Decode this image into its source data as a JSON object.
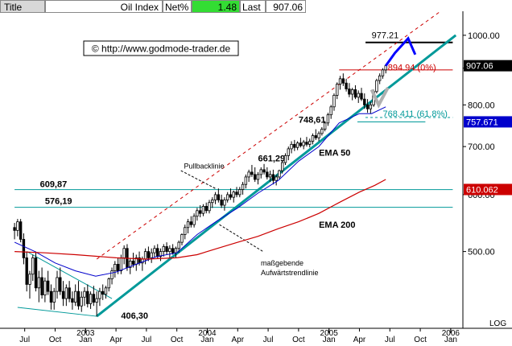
{
  "header": {
    "title_label": "Title",
    "index_name": "Oil Index",
    "netpct_label": "Net%",
    "netpct_value": "1.48",
    "last_label": "Last",
    "last_value": "907.06"
  },
  "watermark": "© http://www.godmode-trader.de",
  "colors": {
    "candle_fill": "#ffffff",
    "candle_stroke": "#000000",
    "ema50": "#0000cc",
    "ema200": "#cc0000",
    "trendline": "#009999",
    "channel": "#cc0000",
    "forecast": "#0000ff",
    "netpct_bg": "#33dd33",
    "last_bg": "#000000",
    "tag_blue": "#0000cc",
    "tag_red": "#cc0000"
  },
  "chart_data": {
    "type": "candlestick",
    "scale": "log",
    "ylim": [
      395,
      1080
    ],
    "xlim": [
      "2002-06",
      "2006-01"
    ],
    "x_ticks": [
      {
        "label": "Jul",
        "t": 1.0
      },
      {
        "label": "Oct",
        "t": 4.0
      },
      {
        "label": "Jan",
        "t": 7.0,
        "year": "2003"
      },
      {
        "label": "Apr",
        "t": 10.0
      },
      {
        "label": "Jul",
        "t": 13.0
      },
      {
        "label": "Oct",
        "t": 16.0
      },
      {
        "label": "Jan",
        "t": 19.0,
        "year": "2004"
      },
      {
        "label": "Apr",
        "t": 22.0
      },
      {
        "label": "Jul",
        "t": 25.0
      },
      {
        "label": "Oct",
        "t": 28.0
      },
      {
        "label": "Jan",
        "t": 31.0,
        "year": "2005"
      },
      {
        "label": "Apr",
        "t": 34.0
      },
      {
        "label": "Jul",
        "t": 37.0
      },
      {
        "label": "Oct",
        "t": 40.0
      },
      {
        "label": "Jan",
        "t": 43.0,
        "year": "2006"
      }
    ],
    "y_ticks": [
      500,
      600,
      700,
      800,
      900,
      1000
    ],
    "y_tick_labels": [
      "500.00",
      "600.00",
      "700.00",
      "800.00",
      "900.00",
      "1000.00"
    ],
    "scale_label": "LOG",
    "price_tags": [
      {
        "value": 907.06,
        "label": "907.06",
        "style": "black"
      },
      {
        "value": 757.671,
        "label": "757.671",
        "style": "blue"
      },
      {
        "value": 610.062,
        "label": "610.062",
        "style": "red"
      }
    ],
    "candles": [
      [
        0.0,
        540,
        548,
        520,
        535
      ],
      [
        0.3,
        535,
        555,
        525,
        550
      ],
      [
        0.6,
        550,
        555,
        515,
        520
      ],
      [
        0.9,
        520,
        530,
        480,
        490
      ],
      [
        1.2,
        490,
        500,
        440,
        450
      ],
      [
        1.5,
        450,
        470,
        430,
        465
      ],
      [
        1.8,
        465,
        495,
        455,
        490
      ],
      [
        2.1,
        490,
        500,
        440,
        445
      ],
      [
        2.4,
        445,
        470,
        425,
        460
      ],
      [
        2.7,
        460,
        475,
        430,
        435
      ],
      [
        3.0,
        435,
        460,
        425,
        455
      ],
      [
        3.3,
        455,
        470,
        435,
        440
      ],
      [
        3.6,
        440,
        450,
        415,
        425
      ],
      [
        3.9,
        425,
        445,
        415,
        440
      ],
      [
        4.2,
        440,
        470,
        430,
        460
      ],
      [
        4.5,
        460,
        475,
        435,
        440
      ],
      [
        4.8,
        440,
        455,
        420,
        430
      ],
      [
        5.1,
        430,
        450,
        420,
        445
      ],
      [
        5.4,
        445,
        455,
        425,
        430
      ],
      [
        5.7,
        430,
        440,
        415,
        425
      ],
      [
        6.0,
        425,
        450,
        420,
        440
      ],
      [
        6.3,
        440,
        455,
        415,
        420
      ],
      [
        6.6,
        420,
        440,
        412,
        432
      ],
      [
        6.9,
        432,
        446,
        420,
        440
      ],
      [
        7.2,
        440,
        450,
        418,
        423
      ],
      [
        7.5,
        423,
        440,
        416,
        436
      ],
      [
        7.8,
        436,
        448,
        420,
        425
      ],
      [
        8.1,
        425,
        440,
        406,
        430
      ],
      [
        8.4,
        430,
        445,
        420,
        440
      ],
      [
        8.7,
        440,
        450,
        428,
        436
      ],
      [
        9.0,
        436,
        448,
        430,
        445
      ],
      [
        9.3,
        445,
        460,
        440,
        458
      ],
      [
        9.6,
        458,
        475,
        450,
        470
      ],
      [
        9.9,
        470,
        485,
        460,
        480
      ],
      [
        10.2,
        480,
        490,
        465,
        470
      ],
      [
        10.5,
        470,
        495,
        465,
        490
      ],
      [
        10.8,
        490,
        510,
        480,
        505
      ],
      [
        11.1,
        505,
        512,
        470,
        475
      ],
      [
        11.4,
        475,
        490,
        465,
        485
      ],
      [
        11.7,
        485,
        498,
        475,
        480
      ],
      [
        12.0,
        480,
        495,
        470,
        490
      ],
      [
        12.3,
        490,
        500,
        478,
        482
      ],
      [
        12.6,
        482,
        492,
        470,
        488
      ],
      [
        12.9,
        488,
        505,
        480,
        500
      ],
      [
        13.2,
        500,
        508,
        485,
        490
      ],
      [
        13.5,
        490,
        505,
        482,
        498
      ],
      [
        13.8,
        498,
        510,
        490,
        505
      ],
      [
        14.1,
        505,
        512,
        488,
        492
      ],
      [
        14.4,
        492,
        505,
        485,
        500
      ],
      [
        14.7,
        500,
        512,
        492,
        508
      ],
      [
        15.0,
        508,
        515,
        495,
        500
      ],
      [
        15.3,
        500,
        510,
        490,
        505
      ],
      [
        15.6,
        505,
        512,
        495,
        498
      ],
      [
        15.9,
        498,
        508,
        490,
        505
      ],
      [
        16.2,
        505,
        518,
        498,
        515
      ],
      [
        16.5,
        515,
        530,
        510,
        528
      ],
      [
        16.8,
        528,
        545,
        520,
        540
      ],
      [
        17.1,
        540,
        555,
        530,
        550
      ],
      [
        17.4,
        550,
        560,
        540,
        545
      ],
      [
        17.7,
        545,
        565,
        540,
        560
      ],
      [
        18.0,
        560,
        575,
        552,
        570
      ],
      [
        18.3,
        570,
        580,
        558,
        565
      ],
      [
        18.6,
        565,
        582,
        560,
        578
      ],
      [
        18.9,
        578,
        585,
        565,
        570
      ],
      [
        19.2,
        570,
        590,
        565,
        585
      ],
      [
        19.5,
        585,
        595,
        575,
        590
      ],
      [
        19.8,
        590,
        605,
        582,
        600
      ],
      [
        20.1,
        600,
        612,
        585,
        590
      ],
      [
        20.4,
        590,
        600,
        575,
        580
      ],
      [
        20.7,
        580,
        595,
        570,
        590
      ],
      [
        21.0,
        590,
        605,
        585,
        600
      ],
      [
        21.3,
        600,
        612,
        590,
        595
      ],
      [
        21.6,
        595,
        608,
        585,
        605
      ],
      [
        21.9,
        605,
        615,
        595,
        600
      ],
      [
        22.2,
        600,
        615,
        595,
        610
      ],
      [
        22.5,
        610,
        625,
        600,
        620
      ],
      [
        22.8,
        620,
        640,
        612,
        635
      ],
      [
        23.1,
        635,
        650,
        625,
        645
      ],
      [
        23.4,
        645,
        660,
        635,
        640
      ],
      [
        23.7,
        640,
        655,
        625,
        630
      ],
      [
        24.0,
        630,
        645,
        620,
        640
      ],
      [
        24.3,
        640,
        655,
        632,
        650
      ],
      [
        24.6,
        650,
        662,
        640,
        645
      ],
      [
        24.9,
        645,
        655,
        630,
        635
      ],
      [
        25.2,
        635,
        648,
        625,
        640
      ],
      [
        25.5,
        640,
        650,
        620,
        628
      ],
      [
        25.8,
        628,
        640,
        618,
        635
      ],
      [
        26.1,
        635,
        650,
        630,
        648
      ],
      [
        26.4,
        648,
        670,
        642,
        665
      ],
      [
        26.7,
        665,
        685,
        660,
        680
      ],
      [
        27.0,
        680,
        700,
        670,
        695
      ],
      [
        27.3,
        695,
        712,
        685,
        705
      ],
      [
        27.6,
        705,
        715,
        690,
        698
      ],
      [
        27.9,
        698,
        712,
        692,
        708
      ],
      [
        28.2,
        708,
        720,
        698,
        702
      ],
      [
        28.5,
        702,
        715,
        694,
        710
      ],
      [
        28.8,
        710,
        722,
        700,
        705
      ],
      [
        29.1,
        705,
        718,
        698,
        712
      ],
      [
        29.4,
        712,
        730,
        705,
        725
      ],
      [
        29.7,
        725,
        740,
        715,
        720
      ],
      [
        30.0,
        720,
        735,
        712,
        730
      ],
      [
        30.3,
        730,
        745,
        725,
        740
      ],
      [
        30.6,
        740,
        760,
        735,
        755
      ],
      [
        30.9,
        755,
        780,
        748,
        775
      ],
      [
        31.2,
        775,
        800,
        765,
        795
      ],
      [
        31.5,
        795,
        830,
        785,
        825
      ],
      [
        31.8,
        825,
        860,
        815,
        855
      ],
      [
        32.1,
        855,
        878,
        840,
        870
      ],
      [
        32.4,
        870,
        885,
        850,
        858
      ],
      [
        32.7,
        858,
        870,
        835,
        842
      ],
      [
        33.0,
        842,
        858,
        820,
        828
      ],
      [
        33.3,
        828,
        845,
        812,
        840
      ],
      [
        33.6,
        840,
        852,
        815,
        820
      ],
      [
        33.9,
        820,
        838,
        805,
        830
      ],
      [
        34.2,
        830,
        845,
        810,
        815
      ],
      [
        34.5,
        815,
        830,
        790,
        800
      ],
      [
        34.8,
        800,
        815,
        780,
        790
      ],
      [
        35.1,
        790,
        808,
        778,
        800
      ],
      [
        35.4,
        800,
        840,
        795,
        835
      ],
      [
        35.7,
        835,
        870,
        830,
        865
      ],
      [
        36.0,
        865,
        885,
        855,
        878
      ],
      [
        36.3,
        878,
        900,
        870,
        895
      ],
      [
        36.6,
        895,
        912,
        885,
        907
      ]
    ],
    "ema50": [
      [
        0.0,
        515
      ],
      [
        2.0,
        500
      ],
      [
        4.0,
        482
      ],
      [
        6.0,
        470
      ],
      [
        8.0,
        462
      ],
      [
        10.0,
        468
      ],
      [
        12.0,
        480
      ],
      [
        14.0,
        492
      ],
      [
        16.0,
        498
      ],
      [
        18.0,
        528
      ],
      [
        20.0,
        552
      ],
      [
        22.0,
        575
      ],
      [
        24.0,
        603
      ],
      [
        26.0,
        628
      ],
      [
        28.0,
        668
      ],
      [
        30.0,
        700
      ],
      [
        32.0,
        755
      ],
      [
        34.0,
        778
      ],
      [
        35.2,
        778
      ],
      [
        36.6,
        795
      ]
    ],
    "ema200": [
      [
        0.0,
        500
      ],
      [
        3.0,
        498
      ],
      [
        6.0,
        495
      ],
      [
        10.0,
        490
      ],
      [
        13.0,
        488
      ],
      [
        16.0,
        490
      ],
      [
        18.0,
        495
      ],
      [
        20.0,
        505
      ],
      [
        22.0,
        515
      ],
      [
        24.0,
        525
      ],
      [
        26.0,
        538
      ],
      [
        28.0,
        550
      ],
      [
        30.0,
        565
      ],
      [
        32.0,
        585
      ],
      [
        34.0,
        605
      ],
      [
        35.5,
        618
      ],
      [
        36.6,
        630
      ]
    ],
    "lines": [
      {
        "kind": "trend",
        "from": [
          8.1,
          406.3
        ],
        "to": [
          43.5,
          1000
        ]
      },
      {
        "kind": "channel",
        "from": [
          8.1,
          488
        ],
        "to": [
          42.0,
          1080
        ]
      },
      {
        "kind": "downtrend",
        "from": [
          1.2,
          500
        ],
        "to": [
          9.6,
          430
        ]
      },
      {
        "kind": "downtrend",
        "from": [
          0.3,
          418
        ],
        "to": [
          8.1,
          406.3
        ]
      },
      {
        "kind": "hline",
        "at": 609.87,
        "from": 0,
        "to": 43.2
      },
      {
        "kind": "hline",
        "at": 576.19,
        "from": 0,
        "to": 43.2
      },
      {
        "kind": "hline_dashed",
        "at": 768.411,
        "from": 34.6,
        "to": 43.2
      },
      {
        "kind": "hline_short",
        "at": 757.671,
        "from": 33.8,
        "to": 40.5
      },
      {
        "kind": "hline_red",
        "at": 894.94,
        "from": 32.0,
        "to": 43.2
      },
      {
        "kind": "hline_black",
        "at": 977.21,
        "from": 34.6,
        "to": 43.2
      }
    ],
    "forecast": [
      [
        36.6,
        907
      ],
      [
        37.5,
        945
      ],
      [
        38.8,
        990
      ],
      [
        39.5,
        940
      ]
    ],
    "gray_wave": [
      [
        35.2,
        840
      ],
      [
        35.9,
        800
      ],
      [
        36.8,
        845
      ]
    ],
    "labels": [
      {
        "text": "609,87",
        "t": 2.5,
        "v": 615
      },
      {
        "text": "576,19",
        "t": 3.0,
        "v": 582
      },
      {
        "text": "661,29",
        "t": 24.0,
        "v": 668
      },
      {
        "text": "748,61",
        "t": 28.0,
        "v": 756
      },
      {
        "text": "406,30",
        "t": 10.5,
        "v": 403
      },
      {
        "text": "977.21",
        "t": 35.2,
        "v": 990
      },
      {
        "text": "894.94 (0%)",
        "t": 36.8,
        "v": 893
      },
      {
        "text": "768.411 (61.8%)",
        "t": 36.3,
        "v": 770
      },
      {
        "text": "EMA 50",
        "t": 30.0,
        "v": 680
      },
      {
        "text": "EMA 200",
        "t": 30.0,
        "v": 540
      },
      {
        "text": "Pullbacklinie",
        "t": 16.7,
        "v": 652
      }
    ],
    "annotation_aufwaerts": [
      "maßgebende",
      "Aufwärtstrendlinie"
    ]
  }
}
